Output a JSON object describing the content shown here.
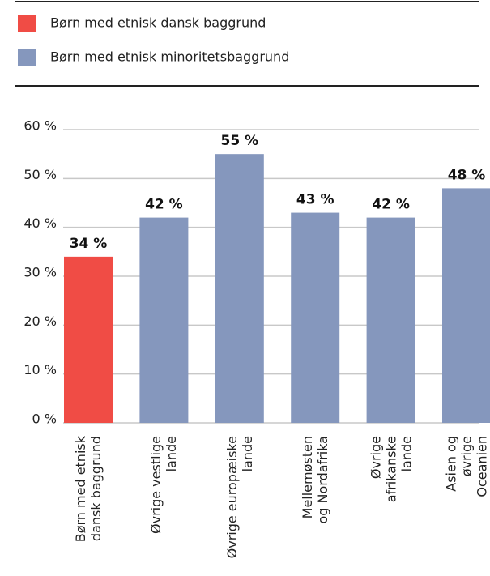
{
  "chart_data": {
    "type": "bar",
    "legend": [
      {
        "name": "Børn med etnisk dansk baggrund",
        "color": "#f04c45"
      },
      {
        "name": "Børn med etnisk minoritetsbaggrund",
        "color": "#8597bd"
      }
    ],
    "categories": [
      "Børn med etnisk\ndansk baggrund",
      "Øvrige vestlige\nlande",
      "Øvrige europæiske\nlande",
      "Mellemøsten\nog Nordafrika",
      "Øvrige afrikanske\nlande",
      "Asien og øvrige\nOceanien"
    ],
    "values": [
      34,
      42,
      55,
      43,
      42,
      48
    ],
    "value_labels": [
      "34 %",
      "42 %",
      "55 %",
      "43 %",
      "42 %",
      "48 %"
    ],
    "colors": [
      "#f04c45",
      "#8597bd",
      "#8597bd",
      "#8597bd",
      "#8597bd",
      "#8597bd"
    ],
    "ylim": [
      0,
      60
    ],
    "yticks": [
      {
        "value": 0,
        "label": "0 %"
      },
      {
        "value": 10,
        "label": "10 %"
      },
      {
        "value": 20,
        "label": "20 %"
      },
      {
        "value": 30,
        "label": "30 %"
      },
      {
        "value": 40,
        "label": "40 %"
      },
      {
        "value": 50,
        "label": "50 %"
      },
      {
        "value": 60,
        "label": "60 %"
      }
    ],
    "grid": true
  }
}
